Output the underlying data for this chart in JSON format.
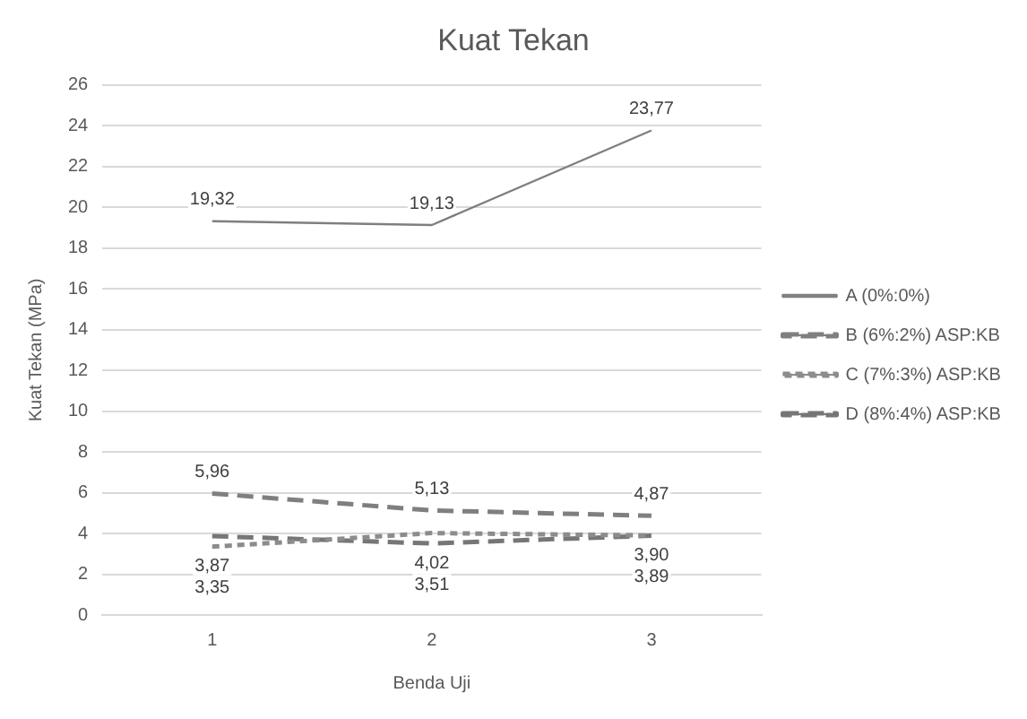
{
  "chart_data": {
    "type": "line",
    "title": "Kuat Tekan",
    "xlabel": "Benda Uji",
    "ylabel": "Kuat Tekan (MPa)",
    "categories": [
      "1",
      "2",
      "3"
    ],
    "series": [
      {
        "name": "A (0%:0%)",
        "color": "#7f7f7f",
        "line_style": "solid",
        "values": [
          19.32,
          19.13,
          23.77
        ],
        "value_labels": [
          "19,32",
          "19,13",
          "23,77"
        ]
      },
      {
        "name": "B (6%:2%) ASP:KB",
        "color": "#7f7f7f",
        "line_style": "dashed",
        "values": [
          5.96,
          5.13,
          4.87
        ],
        "value_labels": [
          "5,96",
          "5,13",
          "4,87"
        ]
      },
      {
        "name": "C (7%:3%) ASP:KB",
        "color": "#8c8c8c",
        "line_style": "dotted",
        "values": [
          3.35,
          4.02,
          3.9
        ],
        "value_labels": [
          "3,35",
          "4,02",
          "3,90"
        ]
      },
      {
        "name": "D (8%:4%) ASP:KB",
        "color": "#767676",
        "line_style": "dashed",
        "values": [
          3.87,
          3.51,
          3.89
        ],
        "value_labels": [
          "3,87",
          "3,51",
          "3,89"
        ]
      }
    ],
    "ylim": [
      0,
      26
    ],
    "yticks": [
      0,
      2,
      4,
      6,
      8,
      10,
      12,
      14,
      16,
      18,
      20,
      22,
      24,
      26
    ],
    "grid": "y",
    "legend": "right",
    "marker": "none"
  }
}
